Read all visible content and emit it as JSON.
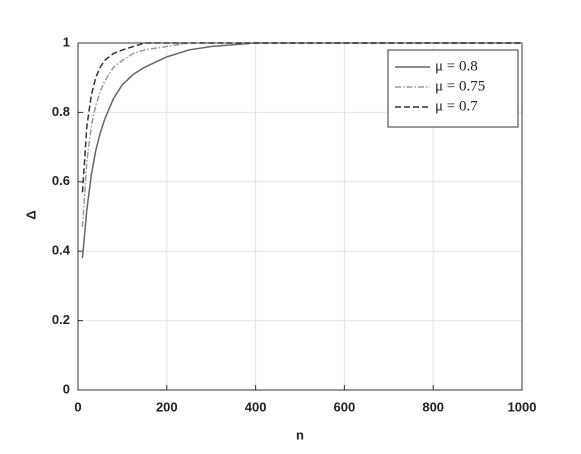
{
  "chart_data": {
    "type": "line",
    "xlabel": "n",
    "ylabel": "Δ",
    "x": [
      10,
      20,
      30,
      40,
      50,
      60,
      80,
      100,
      125,
      150,
      200,
      250,
      300,
      400,
      500,
      600,
      700,
      800,
      900,
      1000
    ],
    "series": [
      {
        "name": "μ = 0.8",
        "color": "#666666",
        "dash": "solid",
        "values": [
          0.38,
          0.52,
          0.62,
          0.69,
          0.74,
          0.78,
          0.84,
          0.88,
          0.91,
          0.93,
          0.96,
          0.98,
          0.99,
          1,
          1,
          1,
          1,
          1,
          1,
          1
        ]
      },
      {
        "name": "μ = 0.75",
        "color": "#999999",
        "dash": "dashdot",
        "values": [
          0.47,
          0.66,
          0.76,
          0.82,
          0.86,
          0.89,
          0.93,
          0.95,
          0.97,
          0.98,
          0.99,
          1,
          1,
          1,
          1,
          1,
          1,
          1,
          1,
          1
        ]
      },
      {
        "name": "μ = 0.7",
        "color": "#333333",
        "dash": "dashed",
        "values": [
          0.57,
          0.76,
          0.85,
          0.9,
          0.93,
          0.95,
          0.97,
          0.98,
          0.99,
          1,
          1,
          1,
          1,
          1,
          1,
          1,
          1,
          1,
          1,
          1
        ]
      }
    ],
    "xlim": [
      0,
      1000
    ],
    "xticks": [
      0,
      200,
      400,
      600,
      800,
      1000
    ],
    "ylim": [
      0,
      1
    ],
    "yticks": [
      0,
      0.2,
      0.4,
      0.6,
      0.8,
      1
    ],
    "grid": true,
    "legend": "upper right"
  }
}
